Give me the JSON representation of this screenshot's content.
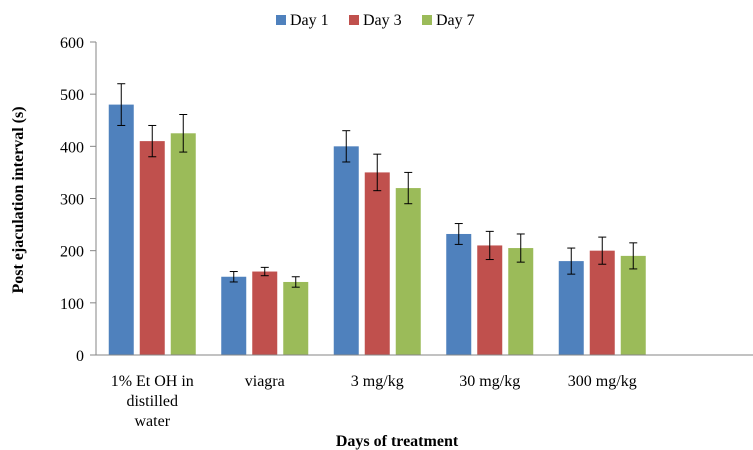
{
  "chart_data": {
    "type": "bar",
    "title": "",
    "xlabel": "Days of treatment",
    "ylabel": "Post ejaculation interval (s)",
    "ylim": [
      0,
      600
    ],
    "yticks": [
      "0",
      "100",
      "200",
      "300",
      "400",
      "500",
      "600"
    ],
    "grid": false,
    "legend_position": "top",
    "error_bars": true,
    "categories": [
      [
        "1% Et OH in",
        "distilled",
        "water"
      ],
      [
        "viagra"
      ],
      [
        "3 mg/kg"
      ],
      [
        "30 mg/kg"
      ],
      [
        "300 mg/kg"
      ]
    ],
    "series": [
      {
        "name": "Day 1",
        "color": "#4f81bd",
        "values": [
          480,
          150,
          400,
          232,
          180
        ],
        "errors": [
          40,
          10,
          30,
          20,
          25
        ]
      },
      {
        "name": "Day 3",
        "color": "#c0504d",
        "values": [
          410,
          160,
          350,
          210,
          200
        ],
        "errors": [
          30,
          8,
          35,
          27,
          26
        ]
      },
      {
        "name": "Day 7",
        "color": "#9bbb59",
        "values": [
          425,
          140,
          320,
          205,
          190
        ],
        "errors": [
          36,
          10,
          30,
          27,
          25
        ]
      }
    ]
  }
}
